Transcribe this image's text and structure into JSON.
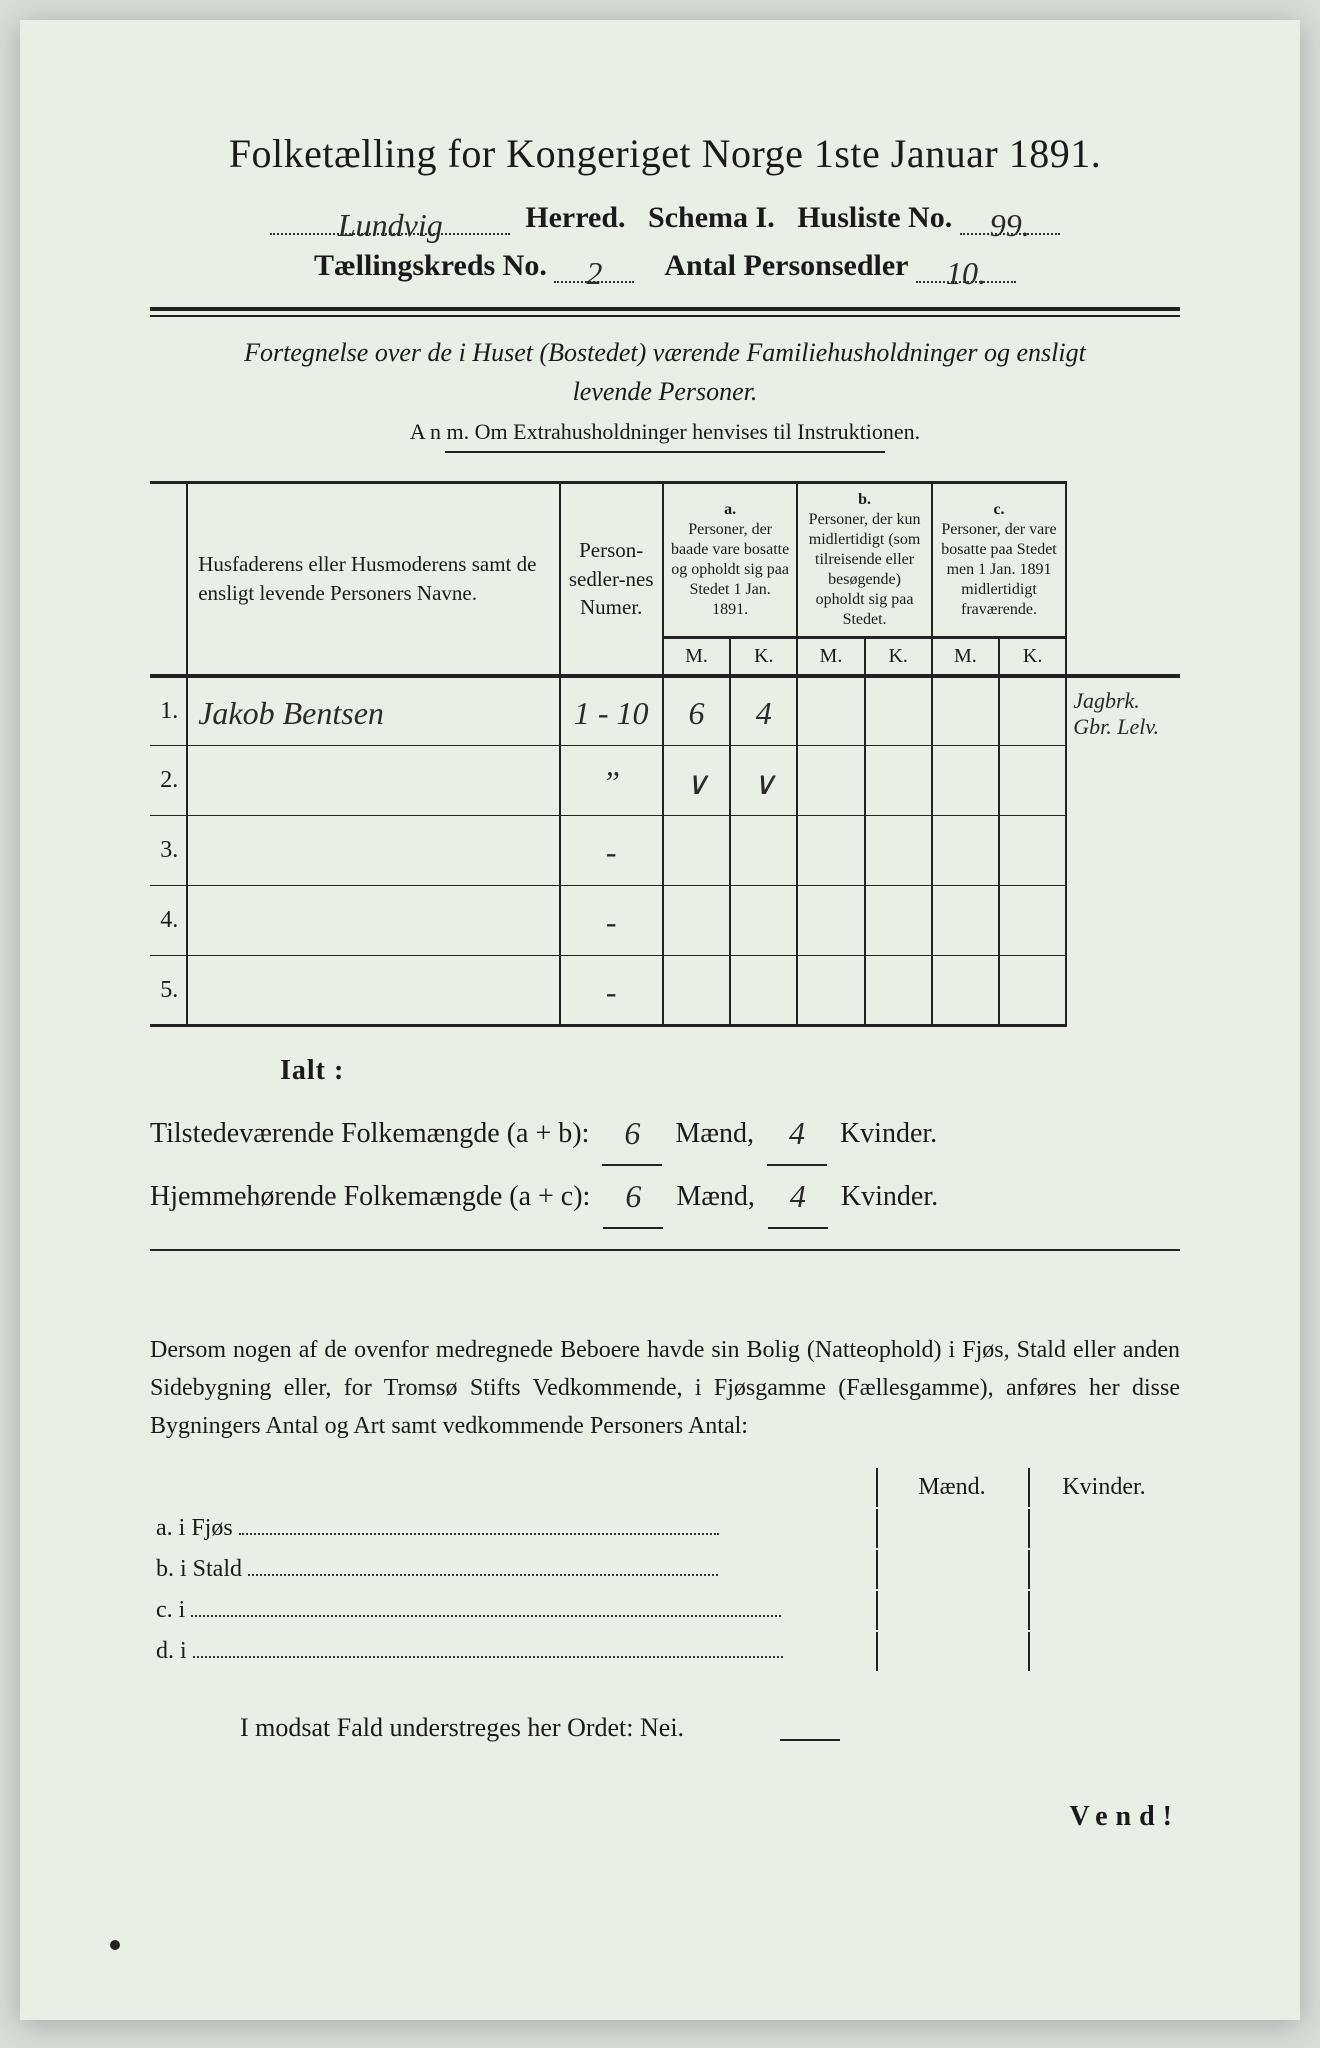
{
  "title": "Folketælling for Kongeriget Norge 1ste Januar 1891.",
  "header": {
    "herred_value": "Lundvig",
    "herred_label": "Herred.",
    "schema_label": "Schema I.",
    "husliste_label": "Husliste No.",
    "husliste_value": "99.",
    "kreds_label": "Tællingskreds No.",
    "kreds_value": "2",
    "antal_label": "Antal Personsedler",
    "antal_value": "10."
  },
  "subtitle_line1": "Fortegnelse over de i Huset (Bostedet) værende Familiehusholdninger og ensligt",
  "subtitle_line2": "levende Personer.",
  "anm": "A n m.  Om Extrahusholdninger henvises til Instruktionen.",
  "table": {
    "col_names": "Husfaderens eller Husmoderens samt de ensligt levende Personers Navne.",
    "col_nums": "Person-sedler-nes Numer.",
    "col_a_top": "a.",
    "col_a": "Personer, der baade vare bosatte og opholdt sig paa Stedet 1 Jan. 1891.",
    "col_b_top": "b.",
    "col_b": "Personer, der kun midlertidigt (som tilreisende eller besøgende) opholdt sig paa Stedet.",
    "col_c_top": "c.",
    "col_c": "Personer, der vare bosatte paa Stedet men 1 Jan. 1891 midlertidigt fraværende.",
    "m": "M.",
    "k": "K.",
    "rows": [
      {
        "n": "1.",
        "name": "Jakob Bentsen",
        "num": "1 - 10",
        "aM": "6",
        "aK": "4",
        "bM": "",
        "bK": "",
        "cM": "",
        "cK": "",
        "margin": "Jagbrk.\nGbr. Lelv."
      },
      {
        "n": "2.",
        "name": "",
        "num": "”",
        "aM": "∨",
        "aK": "∨",
        "bM": "",
        "bK": "",
        "cM": "",
        "cK": "",
        "margin": ""
      },
      {
        "n": "3.",
        "name": "",
        "num": "-",
        "aM": "",
        "aK": "",
        "bM": "",
        "bK": "",
        "cM": "",
        "cK": "",
        "margin": ""
      },
      {
        "n": "4.",
        "name": "",
        "num": "-",
        "aM": "",
        "aK": "",
        "bM": "",
        "bK": "",
        "cM": "",
        "cK": "",
        "margin": ""
      },
      {
        "n": "5.",
        "name": "",
        "num": "-",
        "aM": "",
        "aK": "",
        "bM": "",
        "bK": "",
        "cM": "",
        "cK": "",
        "margin": ""
      }
    ]
  },
  "ialt": "Ialt :",
  "sums": {
    "line1_pre": "Tilstedeværende Folkemængde (a + b): ",
    "line1_m": "6",
    "maend": " Mænd, ",
    "line1_k": "4",
    "kvinder": " Kvinder.",
    "line2_pre": "Hjemmehørende Folkemængde (a + c): ",
    "line2_m": "6",
    "line2_k": "4"
  },
  "para": "Dersom nogen af de ovenfor medregnede Beboere havde sin Bolig (Natteophold) i Fjøs, Stald eller anden Sidebygning eller, for Tromsø Stifts Vedkommende, i Fjøsgamme (Fællesgamme), anføres her disse Bygningers Antal og Art samt vedkommende Personers Antal:",
  "build": {
    "maend": "Mænd.",
    "kvinder": "Kvinder.",
    "a": "a.  i      Fjøs",
    "b": "b.  i      Stald",
    "c": "c.  i",
    "d": "d.  i"
  },
  "closing": "I modsat Fald understreges her Ordet: Nei.",
  "vend": "Vend!"
}
